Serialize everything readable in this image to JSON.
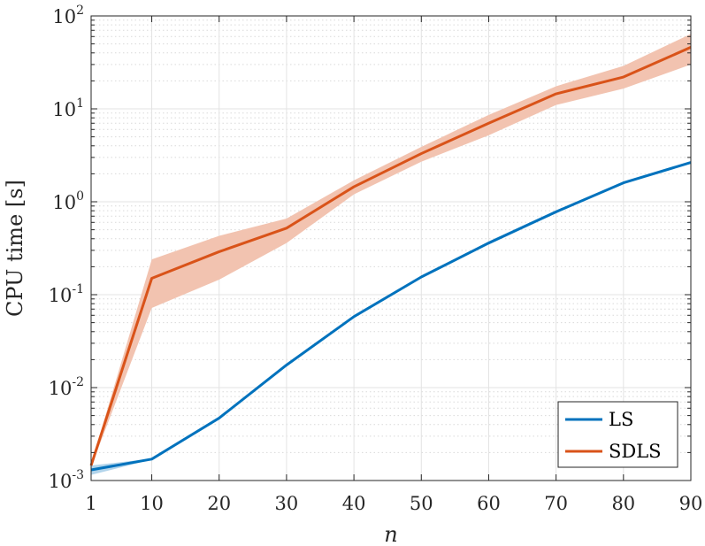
{
  "chart_data": {
    "type": "line",
    "title": "",
    "xlabel": "n",
    "ylabel": "CPU time [s]",
    "x": [
      1,
      10,
      20,
      30,
      40,
      50,
      60,
      70,
      80,
      90
    ],
    "xlim": [
      1,
      90
    ],
    "xticks": [
      "1",
      "10",
      "20",
      "30",
      "40",
      "50",
      "60",
      "70",
      "80",
      "90"
    ],
    "yscale": "log",
    "ylim": [
      0.001,
      100
    ],
    "yticks": [
      {
        "base": "10",
        "exp": "-3"
      },
      {
        "base": "10",
        "exp": "-2"
      },
      {
        "base": "10",
        "exp": "-1"
      },
      {
        "base": "10",
        "exp": "0"
      },
      {
        "base": "10",
        "exp": "1"
      },
      {
        "base": "10",
        "exp": "2"
      }
    ],
    "grid": true,
    "minor_grid": true,
    "legend_position": "bottom-right",
    "series": [
      {
        "name": "LS",
        "color": "#0072BD",
        "values": [
          0.0013,
          0.0017,
          0.0047,
          0.0175,
          0.058,
          0.155,
          0.36,
          0.78,
          1.6,
          2.65
        ],
        "lower": [
          0.00115,
          0.00168,
          0.00465,
          0.0172,
          0.057,
          0.152,
          0.345,
          0.75,
          1.58,
          2.6
        ],
        "upper": [
          0.00145,
          0.00172,
          0.00475,
          0.0178,
          0.059,
          0.158,
          0.375,
          0.81,
          1.62,
          2.7
        ]
      },
      {
        "name": "SDLS",
        "color": "#D95319",
        "band_color": "#F2C3B0",
        "values": [
          0.00145,
          0.15,
          0.29,
          0.52,
          1.45,
          3.3,
          7.0,
          14.5,
          22.0,
          46.0
        ],
        "lower": [
          0.0014,
          0.072,
          0.145,
          0.36,
          1.2,
          2.7,
          5.2,
          11.0,
          16.5,
          30.0
        ],
        "upper": [
          0.0015,
          0.24,
          0.43,
          0.66,
          1.7,
          3.9,
          8.6,
          17.5,
          29.0,
          64.0
        ]
      }
    ]
  }
}
